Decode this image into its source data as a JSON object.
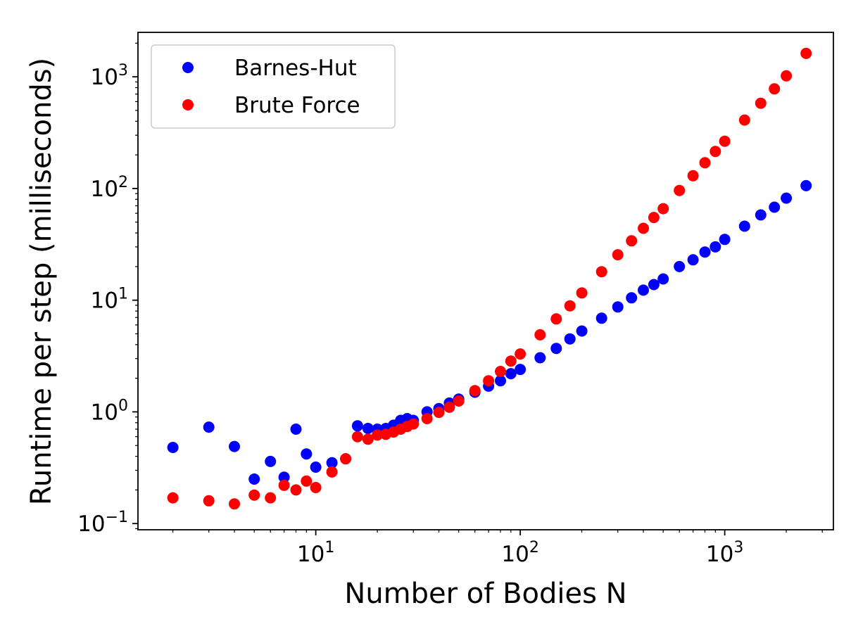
{
  "chart_data": {
    "type": "scatter",
    "title": "",
    "xlabel": "Number of Bodies N",
    "ylabel": "Runtime per step (milliseconds)",
    "xscale": "log",
    "yscale": "log",
    "xlim": [
      1.35,
      3400
    ],
    "ylim": [
      0.088,
      2500
    ],
    "grid": false,
    "legend_position": "top-left",
    "x_ticks": [
      {
        "value": 10,
        "base": "10",
        "exp": "1"
      },
      {
        "value": 100,
        "base": "10",
        "exp": "2"
      },
      {
        "value": 1000,
        "base": "10",
        "exp": "3"
      }
    ],
    "y_ticks": [
      {
        "value": 0.1,
        "base": "10",
        "exp": "−1"
      },
      {
        "value": 1,
        "base": "10",
        "exp": "0"
      },
      {
        "value": 10,
        "base": "10",
        "exp": "1"
      },
      {
        "value": 100,
        "base": "10",
        "exp": "2"
      },
      {
        "value": 1000,
        "base": "10",
        "exp": "3"
      }
    ],
    "series": [
      {
        "name": "Barnes-Hut",
        "color": "#0000ff",
        "x": [
          2,
          3,
          4,
          5,
          6,
          7,
          8,
          9,
          10,
          12,
          14,
          16,
          18,
          20,
          22,
          24,
          26,
          28,
          30,
          35,
          40,
          45,
          50,
          60,
          70,
          80,
          90,
          100,
          125,
          150,
          175,
          200,
          250,
          300,
          350,
          400,
          450,
          500,
          600,
          700,
          800,
          900,
          1000,
          1250,
          1500,
          1750,
          2000,
          2500
        ],
        "y": [
          0.48,
          0.73,
          0.49,
          0.25,
          0.36,
          0.26,
          0.7,
          0.42,
          0.32,
          0.35,
          0.38,
          0.75,
          0.71,
          0.7,
          0.71,
          0.76,
          0.84,
          0.87,
          0.84,
          1.0,
          1.07,
          1.2,
          1.3,
          1.5,
          1.7,
          1.9,
          2.2,
          2.4,
          3.05,
          3.7,
          4.5,
          5.3,
          6.9,
          8.7,
          10.5,
          12.3,
          13.8,
          15.5,
          20.0,
          23.0,
          27.0,
          30.0,
          35.0,
          46.0,
          58.0,
          68.0,
          82.0,
          106.0
        ]
      },
      {
        "name": "Brute Force",
        "color": "#ff0000",
        "x": [
          2,
          3,
          4,
          5,
          6,
          7,
          8,
          9,
          10,
          12,
          14,
          16,
          18,
          20,
          22,
          24,
          26,
          28,
          30,
          35,
          40,
          45,
          50,
          60,
          70,
          80,
          90,
          100,
          125,
          150,
          175,
          200,
          250,
          300,
          350,
          400,
          450,
          500,
          600,
          700,
          800,
          900,
          1000,
          1250,
          1500,
          1750,
          2000,
          2500
        ],
        "y": [
          0.17,
          0.16,
          0.15,
          0.18,
          0.17,
          0.22,
          0.2,
          0.24,
          0.21,
          0.29,
          0.38,
          0.6,
          0.57,
          0.62,
          0.63,
          0.66,
          0.7,
          0.74,
          0.78,
          0.87,
          0.99,
          1.1,
          1.25,
          1.55,
          1.9,
          2.3,
          2.85,
          3.3,
          4.9,
          6.8,
          8.9,
          11.6,
          18.0,
          25.5,
          34.0,
          44.0,
          55.0,
          66.0,
          96.0,
          130.0,
          170.0,
          215.0,
          265.0,
          410.0,
          580.0,
          780.0,
          1020.0,
          1620.0
        ]
      }
    ]
  }
}
